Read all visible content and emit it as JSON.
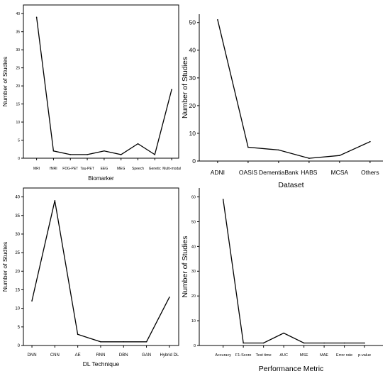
{
  "chart_data": [
    {
      "type": "line",
      "categories": [
        "MRI",
        "fMRI",
        "FDG-PET",
        "Tau-PET",
        "EEG",
        "MEG",
        "Speech",
        "Genetic",
        "Multi-modal"
      ],
      "values": [
        39,
        2,
        1,
        1,
        2,
        1,
        4,
        1,
        19
      ],
      "xlabel": "Biomarker",
      "ylabel": "Number of Studies",
      "ylim": [
        0,
        40
      ],
      "yticks": [
        0,
        5,
        10,
        15,
        20,
        25,
        30,
        35,
        40
      ],
      "grid": false
    },
    {
      "type": "line",
      "categories": [
        "ADNI",
        "OASIS",
        "DementiaBank",
        "HABS",
        "MCSA",
        "Others"
      ],
      "values": [
        51,
        5,
        4,
        1,
        2,
        7
      ],
      "xlabel": "Dataset",
      "ylabel": "Number of Studies",
      "ylim": [
        0,
        50
      ],
      "yticks": [
        0,
        10,
        20,
        30,
        40,
        50
      ],
      "grid": false
    },
    {
      "type": "line",
      "categories": [
        "DNN",
        "CNN",
        "AE",
        "RNN",
        "DBN",
        "GAN",
        "Hybrid DL"
      ],
      "values": [
        12,
        39,
        3,
        1,
        1,
        1,
        13
      ],
      "xlabel": "DL Technique",
      "ylabel": "Number of Studies",
      "ylim": [
        0,
        40
      ],
      "yticks": [
        0,
        5,
        10,
        15,
        20,
        25,
        30,
        35,
        40
      ],
      "grid": false
    },
    {
      "type": "line",
      "categories": [
        "Accuracy",
        "F1-Score",
        "Test time",
        "AUC",
        "MSE",
        "MAE",
        "Error rate",
        "p-value"
      ],
      "values": [
        59,
        1,
        1,
        5,
        1,
        1,
        1,
        1
      ],
      "xlabel": "Performance Metric",
      "ylabel": "Number of Studies",
      "ylim": [
        0,
        60
      ],
      "yticks": [
        0,
        10,
        20,
        30,
        40,
        50,
        60
      ],
      "grid": false
    }
  ]
}
